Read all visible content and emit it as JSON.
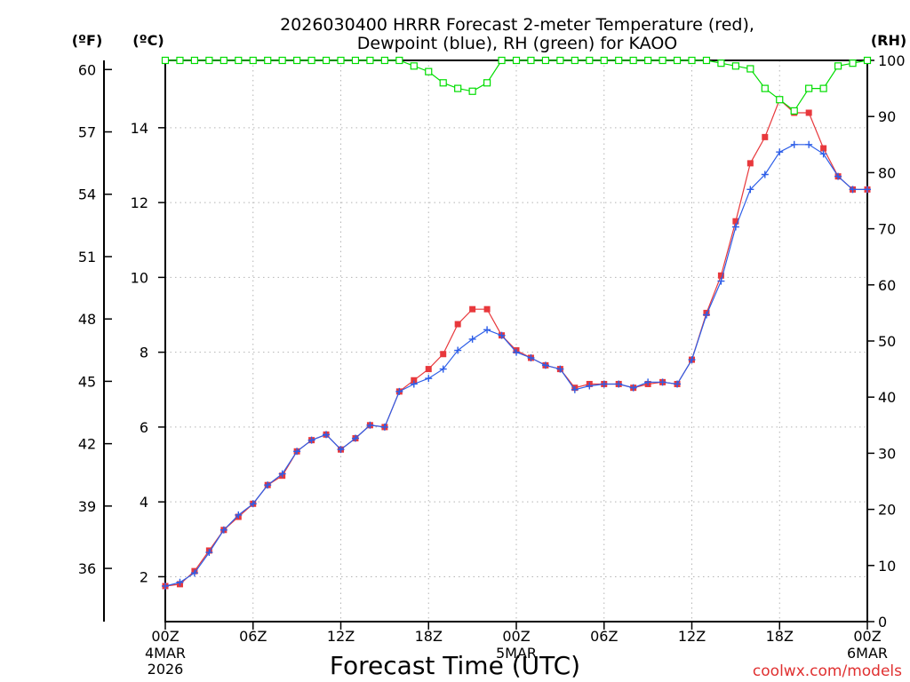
{
  "chart_data": {
    "type": "line",
    "title_line1": "2026030400 HRRR Forecast 2-meter Temperature (red),",
    "title_line2": "Dewpoint (blue), RH (green) for KAOO",
    "xlabel": "Forecast Time (UTC)",
    "unit_f": "(ºF)",
    "unit_c": "(ºC)",
    "unit_rh": "(RH)",
    "watermark": "coolwx.com/models",
    "x_ticks": [
      "00Z",
      "06Z",
      "12Z",
      "18Z",
      "00Z",
      "06Z",
      "12Z",
      "18Z",
      "00Z"
    ],
    "x_tick_hours": [
      0,
      6,
      12,
      18,
      24,
      30,
      36,
      42,
      48
    ],
    "date_labels": [
      {
        "hour": 0,
        "lines": [
          "4MAR",
          "2026"
        ]
      },
      {
        "hour": 24,
        "lines": [
          "5MAR"
        ]
      },
      {
        "hour": 48,
        "lines": [
          "6MAR"
        ]
      }
    ],
    "xlim": [
      0,
      48
    ],
    "ylim_c": [
      0.8,
      15.8
    ],
    "ylim_rh": [
      0,
      100
    ],
    "c_ticks": [
      2,
      4,
      6,
      8,
      10,
      12,
      14
    ],
    "f_ticks": [
      36,
      39,
      42,
      45,
      48,
      51,
      54,
      57,
      60
    ],
    "rh_ticks": [
      0,
      10,
      20,
      30,
      40,
      50,
      60,
      70,
      80,
      90,
      100
    ],
    "hours": [
      0,
      1,
      2,
      3,
      4,
      5,
      6,
      7,
      8,
      9,
      10,
      11,
      12,
      13,
      14,
      15,
      16,
      17,
      18,
      19,
      20,
      21,
      22,
      23,
      24,
      25,
      26,
      27,
      28,
      29,
      30,
      31,
      32,
      33,
      34,
      35,
      36,
      37,
      38,
      39,
      40,
      41,
      42,
      43,
      44,
      45,
      46,
      47,
      48
    ],
    "series": [
      {
        "key": "temperature",
        "color": "#e8383c",
        "marker": "square-filled",
        "values": [
          1.75,
          1.8,
          2.15,
          2.7,
          3.25,
          3.6,
          3.95,
          4.45,
          4.7,
          5.35,
          5.65,
          5.8,
          5.4,
          5.7,
          6.05,
          6.0,
          6.95,
          7.25,
          7.55,
          7.95,
          8.75,
          9.15,
          9.15,
          8.45,
          8.05,
          7.85,
          7.65,
          7.55,
          7.05,
          7.15,
          7.15,
          7.15,
          7.05,
          7.15,
          7.2,
          7.15,
          7.8,
          9.05,
          10.05,
          11.5,
          13.05,
          13.75,
          14.75,
          14.4,
          14.4,
          13.45,
          12.7,
          12.35,
          12.35
        ]
      },
      {
        "key": "dewpoint",
        "color": "#2d5ee8",
        "marker": "plus",
        "values": [
          1.75,
          1.85,
          2.1,
          2.65,
          3.25,
          3.65,
          3.95,
          4.45,
          4.75,
          5.35,
          5.65,
          5.8,
          5.4,
          5.7,
          6.05,
          6.0,
          6.95,
          7.15,
          7.3,
          7.55,
          8.05,
          8.35,
          8.6,
          8.45,
          8.0,
          7.85,
          7.65,
          7.55,
          7.0,
          7.1,
          7.15,
          7.15,
          7.05,
          7.2,
          7.2,
          7.15,
          7.8,
          9.0,
          9.9,
          11.35,
          12.35,
          12.75,
          13.35,
          13.55,
          13.55,
          13.3,
          12.7,
          12.35,
          12.35
        ]
      },
      {
        "key": "relative_humidity",
        "color": "#00dd00",
        "marker": "square-open",
        "values": [
          100,
          100,
          100,
          100,
          100,
          100,
          100,
          100,
          100,
          100,
          100,
          100,
          100,
          100,
          100,
          100,
          100,
          99,
          98,
          96,
          95,
          94.5,
          96,
          100,
          100,
          100,
          100,
          100,
          100,
          100,
          100,
          100,
          100,
          100,
          100,
          100,
          100,
          100,
          99.5,
          99,
          98.5,
          95,
          93,
          91,
          95,
          95,
          99,
          99.5,
          100
        ]
      }
    ]
  }
}
